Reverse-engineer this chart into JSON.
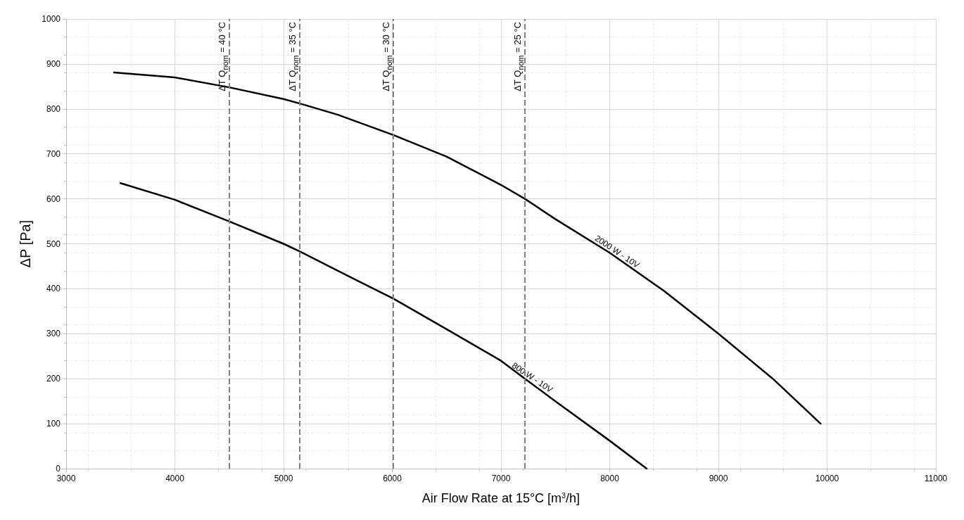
{
  "chart_data": {
    "type": "line",
    "xlabel": "Air Flow Rate at 15°C [m$^{3}$/h]",
    "ylabel": "ΔP [Pa]",
    "xlim": [
      3000,
      11000
    ],
    "xticks": [
      3000,
      4000,
      5000,
      6000,
      7000,
      8000,
      9000,
      10000,
      11000
    ],
    "ylim": [
      0,
      1000
    ],
    "yticks": [
      0,
      100,
      200,
      300,
      400,
      500,
      600,
      700,
      800,
      900,
      1000
    ],
    "grid": true,
    "legend": false,
    "marker": "none",
    "line_style": "solid",
    "series": [
      {
        "name": "2000 W - 10V",
        "color": "#000000",
        "x": [
          3440,
          4000,
          4500,
          5000,
          5150,
          5500,
          6010,
          6500,
          7000,
          7220,
          7500,
          8000,
          8500,
          9000,
          9500,
          9940
        ],
        "values": [
          881,
          870,
          848,
          822,
          812,
          787,
          742,
          694,
          631,
          600,
          555,
          480,
          395,
          300,
          200,
          100
        ]
      },
      {
        "name": "800 W - 10V",
        "color": "#000000",
        "x": [
          3500,
          4000,
          4500,
          5000,
          5150,
          5500,
          6010,
          6500,
          7000,
          7220,
          7500,
          8000,
          8340
        ],
        "values": [
          635,
          598,
          550,
          500,
          483,
          440,
          378,
          310,
          240,
          200,
          150,
          62,
          0
        ]
      }
    ],
    "ref_lines": [
      {
        "axis": "x",
        "value": 4500,
        "color": "#7f7f7f",
        "line_style": "dashed"
      },
      {
        "axis": "x",
        "value": 5150,
        "color": "#7f7f7f",
        "line_style": "dashed"
      },
      {
        "axis": "x",
        "value": 6010,
        "color": "#7f7f7f",
        "line_style": "dashed"
      },
      {
        "axis": "x",
        "value": 7220,
        "color": "#7f7f7f",
        "line_style": "dashed"
      }
    ],
    "annotations": [
      {
        "text": "ΔT  Q$_{nom}$ = 40 °C",
        "x": 4500
      },
      {
        "text": "ΔT  Q$_{nom}$ = 35 °C",
        "x": 5150
      },
      {
        "text": "ΔT  Q$_{nom}$ = 30 °C",
        "x": 6010
      },
      {
        "text": "ΔT  Q$_{nom}$ = 25 °C",
        "x": 7220
      }
    ]
  }
}
